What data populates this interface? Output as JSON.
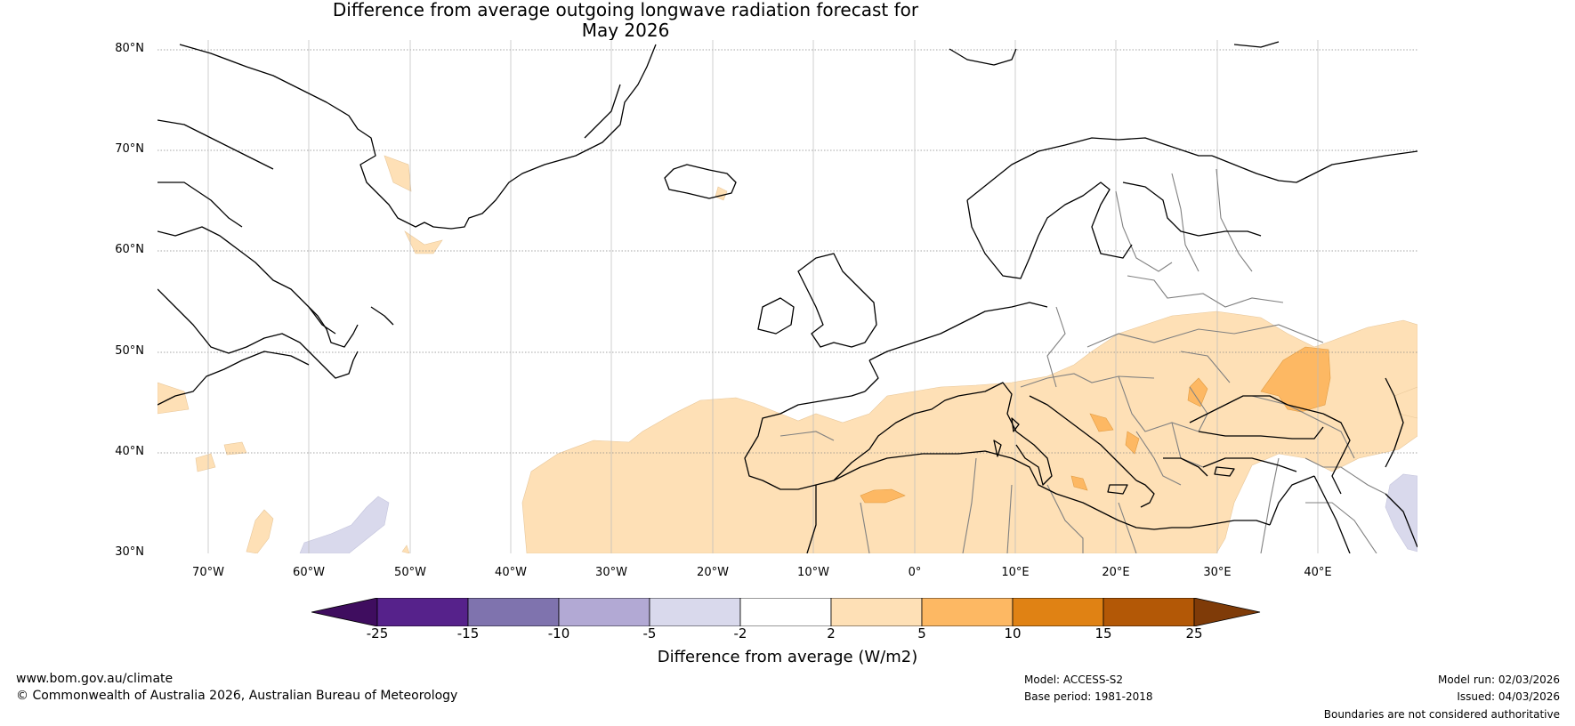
{
  "title_line1": "Difference from average outgoing longwave radiation forecast for",
  "title_line2": "May 2026",
  "map": {
    "lat_labels": [
      "80°N",
      "70°N",
      "60°N",
      "50°N",
      "40°N",
      "30°N"
    ],
    "lon_labels": [
      "70°W",
      "60°W",
      "50°W",
      "40°W",
      "30°W",
      "20°W",
      "10°W",
      "0°",
      "10°E",
      "20°E",
      "30°E",
      "40°E"
    ],
    "extent_lon": [
      -75,
      50
    ],
    "extent_lat": [
      30,
      81
    ]
  },
  "legend": {
    "ticks": [
      "-25",
      "-15",
      "-10",
      "-5",
      "-2",
      "2",
      "5",
      "10",
      "15",
      "25"
    ],
    "colors": [
      "#3f0d5f",
      "#56228b",
      "#7f73ae",
      "#b2a9d4",
      "#d9d9ec",
      "#ffffff",
      "#fee0b6",
      "#fdb863",
      "#e08214",
      "#b35806",
      "#7f3b08"
    ],
    "label": "Difference from average (W/m2)"
  },
  "footer": {
    "website": "www.bom.gov.au/climate",
    "copyright": "© Commonwealth of Australia 2026, Australian Bureau of Meteorology",
    "model": "Model: ACCESS-S2",
    "base_period": "Base period: 1981-2018",
    "model_run": "Model run: 02/03/2026",
    "issued": "Issued: 04/03/2026",
    "disclaimer": "Boundaries are not considered authoritative"
  },
  "colors": {
    "land_outline": "#000000",
    "border": "#808080",
    "grid": "#888888"
  }
}
